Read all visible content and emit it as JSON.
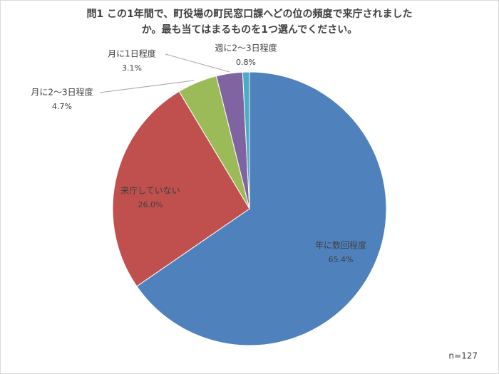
{
  "chart_data": {
    "type": "pie",
    "title": [
      "問1 この1年間で、町役場の町民窓口課へどの位の頻度で来庁されました",
      "か。最も当てはまるものを1つ選んでください。"
    ],
    "categories": [
      "年に数回程度",
      "来庁していない",
      "月に2～3日程度",
      "月に1日程度",
      "週に2～3日程度"
    ],
    "values": [
      65.4,
      26.0,
      4.7,
      3.1,
      0.8
    ],
    "value_labels": [
      "65.4%",
      "26.0%",
      "4.7%",
      "3.1%",
      "0.8%"
    ],
    "colors": [
      "#4f81bd",
      "#c0504d",
      "#9bbb59",
      "#8064a2",
      "#4bacc6"
    ],
    "note": "n=127"
  }
}
